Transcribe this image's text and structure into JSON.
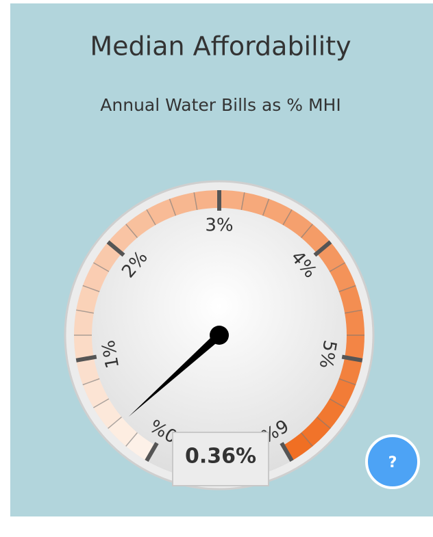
{
  "chart_data": {
    "type": "gauge",
    "title": "Median Affordability",
    "subtitle": "Annual Water Bills as % MHI",
    "values": [
      0.36
    ],
    "value_labels": [
      "0.36%"
    ],
    "ylim": [
      0,
      6
    ],
    "yticks": [
      {
        "value": 0,
        "label": "0%"
      },
      {
        "value": 1,
        "label": "1%"
      },
      {
        "value": 2,
        "label": "2%"
      },
      {
        "value": 3,
        "label": "3%"
      },
      {
        "value": 4,
        "label": "4%"
      },
      {
        "value": 5,
        "label": "5%"
      },
      {
        "value": 6,
        "label": "6%"
      }
    ],
    "minor_ticks_per_major": 5,
    "band_colors": [
      "#fdf1e8",
      "#f06a1c"
    ],
    "needle_color": "#000000"
  },
  "help": "?"
}
